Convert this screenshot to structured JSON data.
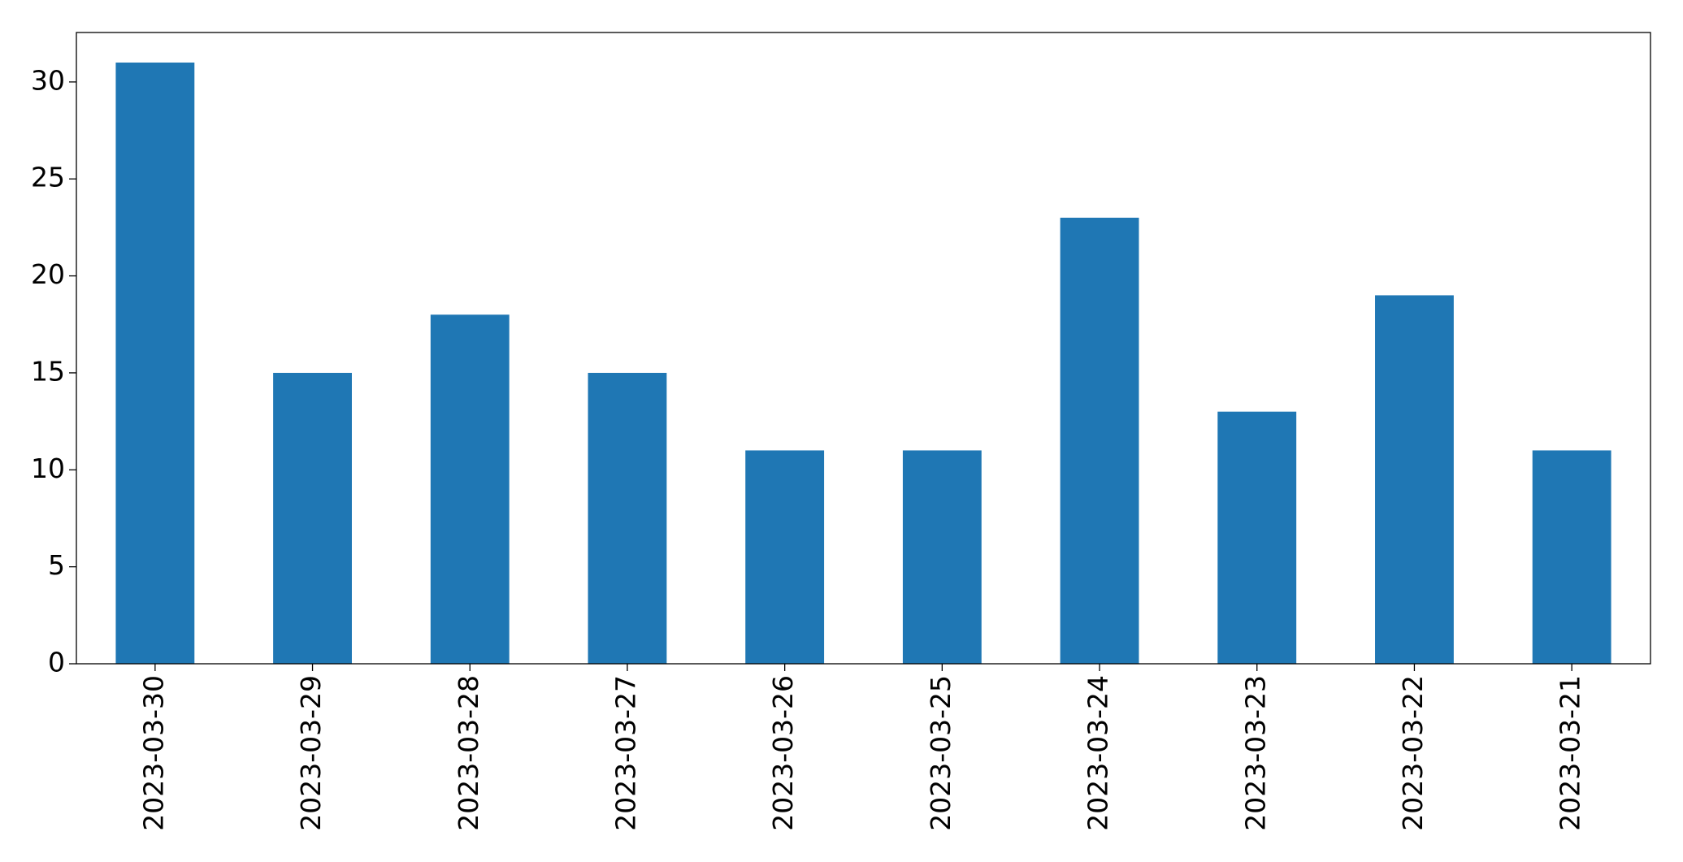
{
  "chart_data": {
    "type": "bar",
    "categories": [
      "2023-03-30",
      "2023-03-29",
      "2023-03-28",
      "2023-03-27",
      "2023-03-26",
      "2023-03-25",
      "2023-03-24",
      "2023-03-23",
      "2023-03-22",
      "2023-03-21"
    ],
    "values": [
      31,
      15,
      18,
      15,
      11,
      11,
      23,
      13,
      19,
      11
    ],
    "color": "#1f77b4",
    "ylim": [
      0,
      32.55
    ],
    "yticks": [
      0,
      5,
      10,
      15,
      20,
      25,
      30
    ],
    "grid": false
  }
}
